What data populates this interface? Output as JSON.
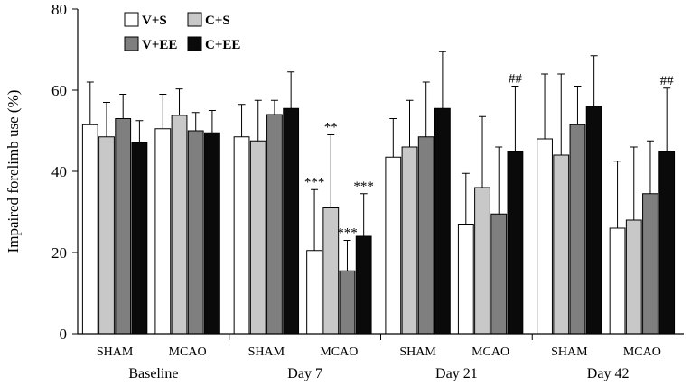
{
  "chart_data": {
    "type": "bar",
    "ylabel": "Impaired forelimb use (%)",
    "ylim": [
      0,
      80
    ],
    "yticks": [
      0,
      20,
      40,
      60,
      80
    ],
    "legend": [
      {
        "name": "V+S",
        "color": "#ffffff"
      },
      {
        "name": "C+S",
        "color": "#c8c8c8"
      },
      {
        "name": "V+EE",
        "color": "#7f7f7f"
      },
      {
        "name": "C+EE",
        "color": "#0a0a0a"
      }
    ],
    "legend_position": "top-left",
    "groups": [
      {
        "session": "Baseline",
        "clusters": [
          {
            "condition": "SHAM",
            "bars": [
              {
                "series": "V+S",
                "value": 51.5,
                "err": 10.5,
                "label": ""
              },
              {
                "series": "C+S",
                "value": 48.5,
                "err": 8.5,
                "label": ""
              },
              {
                "series": "V+EE",
                "value": 53,
                "err": 6,
                "label": ""
              },
              {
                "series": "C+EE",
                "value": 47,
                "err": 5.5,
                "label": ""
              }
            ]
          },
          {
            "condition": "MCAO",
            "bars": [
              {
                "series": "V+S",
                "value": 50.5,
                "err": 8.5,
                "label": ""
              },
              {
                "series": "C+S",
                "value": 53.8,
                "err": 6.5,
                "label": ""
              },
              {
                "series": "V+EE",
                "value": 50,
                "err": 4.5,
                "label": ""
              },
              {
                "series": "C+EE",
                "value": 49.5,
                "err": 5.5,
                "label": ""
              }
            ]
          }
        ]
      },
      {
        "session": "Day 7",
        "clusters": [
          {
            "condition": "SHAM",
            "bars": [
              {
                "series": "V+S",
                "value": 48.5,
                "err": 8,
                "label": ""
              },
              {
                "series": "C+S",
                "value": 47.5,
                "err": 10,
                "label": ""
              },
              {
                "series": "V+EE",
                "value": 54,
                "err": 3.5,
                "label": ""
              },
              {
                "series": "C+EE",
                "value": 55.5,
                "err": 9,
                "label": ""
              }
            ]
          },
          {
            "condition": "MCAO",
            "bars": [
              {
                "series": "V+S",
                "value": 20.5,
                "err": 15,
                "label": "***"
              },
              {
                "series": "C+S",
                "value": 31,
                "err": 18,
                "label": "**"
              },
              {
                "series": "V+EE",
                "value": 15.5,
                "err": 7.5,
                "label": "***"
              },
              {
                "series": "C+EE",
                "value": 24,
                "err": 10.5,
                "label": "***"
              }
            ]
          }
        ]
      },
      {
        "session": "Day 21",
        "clusters": [
          {
            "condition": "SHAM",
            "bars": [
              {
                "series": "V+S",
                "value": 43.5,
                "err": 9.5,
                "label": ""
              },
              {
                "series": "C+S",
                "value": 46,
                "err": 11.5,
                "label": ""
              },
              {
                "series": "V+EE",
                "value": 48.5,
                "err": 13.5,
                "label": ""
              },
              {
                "series": "C+EE",
                "value": 55.5,
                "err": 14,
                "label": ""
              }
            ]
          },
          {
            "condition": "MCAO",
            "bars": [
              {
                "series": "V+S",
                "value": 27,
                "err": 12.5,
                "label": ""
              },
              {
                "series": "C+S",
                "value": 36,
                "err": 17.5,
                "label": ""
              },
              {
                "series": "V+EE",
                "value": 29.5,
                "err": 16.5,
                "label": ""
              },
              {
                "series": "C+EE",
                "value": 45,
                "err": 16,
                "label": "##"
              }
            ]
          }
        ]
      },
      {
        "session": "Day 42",
        "clusters": [
          {
            "condition": "SHAM",
            "bars": [
              {
                "series": "V+S",
                "value": 48,
                "err": 16,
                "label": ""
              },
              {
                "series": "C+S",
                "value": 44,
                "err": 20,
                "label": ""
              },
              {
                "series": "V+EE",
                "value": 51.5,
                "err": 9.5,
                "label": ""
              },
              {
                "series": "C+EE",
                "value": 56,
                "err": 12.5,
                "label": ""
              }
            ]
          },
          {
            "condition": "MCAO",
            "bars": [
              {
                "series": "V+S",
                "value": 26,
                "err": 16.5,
                "label": ""
              },
              {
                "series": "C+S",
                "value": 28,
                "err": 18,
                "label": ""
              },
              {
                "series": "V+EE",
                "value": 34.5,
                "err": 13,
                "label": ""
              },
              {
                "series": "C+EE",
                "value": 45,
                "err": 15.5,
                "label": "##"
              }
            ]
          }
        ]
      }
    ]
  }
}
